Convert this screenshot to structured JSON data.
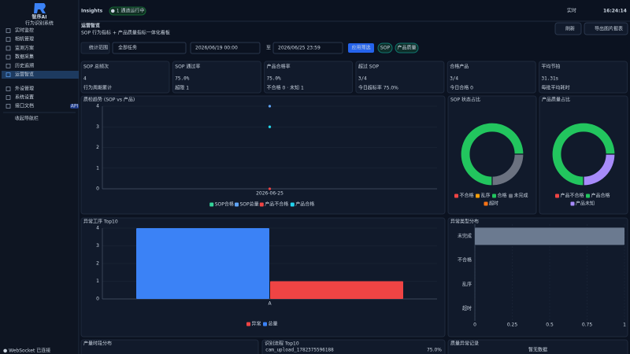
{
  "sidebar": {
    "brand": "智序AI",
    "tagline": "行为识别系统",
    "menu": [
      "实时监控",
      "相机管理",
      "监测方案",
      "数据采集",
      "历史追溯",
      "运营智览"
    ],
    "menu2": [
      "外设管理",
      "系统设置",
      "接口文档"
    ],
    "api_badge": "API",
    "collapse": "收起导航栏",
    "status": "● WebSocket 已连接"
  },
  "topbar": {
    "title": "Insights",
    "channel": "● 1 通道运行中",
    "live": "实时",
    "time": "16:24:14"
  },
  "header": {
    "title": "运营智览",
    "subtitle": "SOP 行为指标 + 产品质量指标一体化看板",
    "refresh": "刷新",
    "export": "导出图片报表"
  },
  "filters": {
    "label": "统计范围",
    "task": "全部任务",
    "start": "2026/06/19 00:00",
    "to": "至",
    "end": "2026/06/25 23:59",
    "apply": "应用筛选",
    "tags": [
      "SOP",
      "产品质量"
    ]
  },
  "kpis": [
    {
      "title": "SOP 总频次",
      "value": "4",
      "note": "行为周期累计",
      "color": "#60a5fa"
    },
    {
      "title": "SOP 通过率",
      "value": "75.0%",
      "note": "超限 1",
      "color": "#2dd4bf"
    },
    {
      "title": "产品合格率",
      "value": "75.0%",
      "note": "不合格 0 · 未知 1",
      "color": "#2dd4bf"
    },
    {
      "title": "超过 SOP",
      "value": "3/4",
      "note": "今日超标率 75.0%",
      "color": "#f59e0b"
    },
    {
      "title": "合格产品",
      "value": "3/4",
      "note": "今日合格 0",
      "color": "#38bdf8"
    },
    {
      "title": "平均节拍",
      "value": "31.31s",
      "note": "每批平均耗时",
      "color": "#22d3ee"
    }
  ],
  "chart_data": [
    {
      "type": "line",
      "title": "质检趋势 (SOP vs 产品)",
      "categories": [
        "2026-06-25"
      ],
      "ylim": [
        0,
        4
      ],
      "yticks": [
        0,
        1,
        2,
        3,
        4
      ],
      "grid": true,
      "series": [
        {
          "name": "SOP合格",
          "color": "#34d399",
          "values": [
            3
          ]
        },
        {
          "name": "SOP总量",
          "color": "#60a5fa",
          "values": [
            4
          ]
        },
        {
          "name": "产品不合格",
          "color": "#ef4444",
          "values": [
            0
          ]
        },
        {
          "name": "产品合格",
          "color": "#22d3ee",
          "values": [
            3
          ]
        }
      ]
    },
    {
      "type": "pie",
      "title": "SOP 状态占比",
      "categories": [
        "不合格",
        "乱序",
        "合格",
        "未完成",
        "超时"
      ],
      "values": [
        0,
        0,
        3,
        1,
        0
      ],
      "colors": [
        "#ef4444",
        "#f59e0b",
        "#22c55e",
        "#6b7280",
        "#f97316"
      ]
    },
    {
      "type": "pie",
      "title": "产品质量占比",
      "categories": [
        "产品不合格",
        "产品合格",
        "产品未知"
      ],
      "values": [
        0,
        3,
        1
      ],
      "colors": [
        "#ef4444",
        "#22c55e",
        "#a78bfa"
      ]
    },
    {
      "type": "bar",
      "title": "异常工序 Top10",
      "categories": [
        "A"
      ],
      "ylim": [
        0,
        4
      ],
      "yticks": [
        0,
        1,
        2,
        3,
        4
      ],
      "grid": true,
      "series": [
        {
          "name": "异常",
          "color": "#ef4444",
          "values": [
            1
          ]
        },
        {
          "name": "总量",
          "color": "#3b82f6",
          "values": [
            4
          ]
        }
      ]
    },
    {
      "type": "hbar",
      "title": "异常类型分布",
      "categories": [
        "未完成",
        "不合格",
        "乱序",
        "超时"
      ],
      "values": [
        1,
        0,
        0,
        0
      ],
      "color": "#6b7a90",
      "xlim": [
        0,
        1
      ],
      "xticks": [
        0,
        0.25,
        0.5,
        0.75,
        1
      ],
      "grid": true
    }
  ],
  "bottom": {
    "panels": [
      "产量时段分布",
      "识别流程 Top10",
      "质量异常记录"
    ],
    "flow_row": {
      "name": "cam_upload_1782375596188",
      "rate": "75.0%"
    },
    "empty": "暂无数据"
  }
}
